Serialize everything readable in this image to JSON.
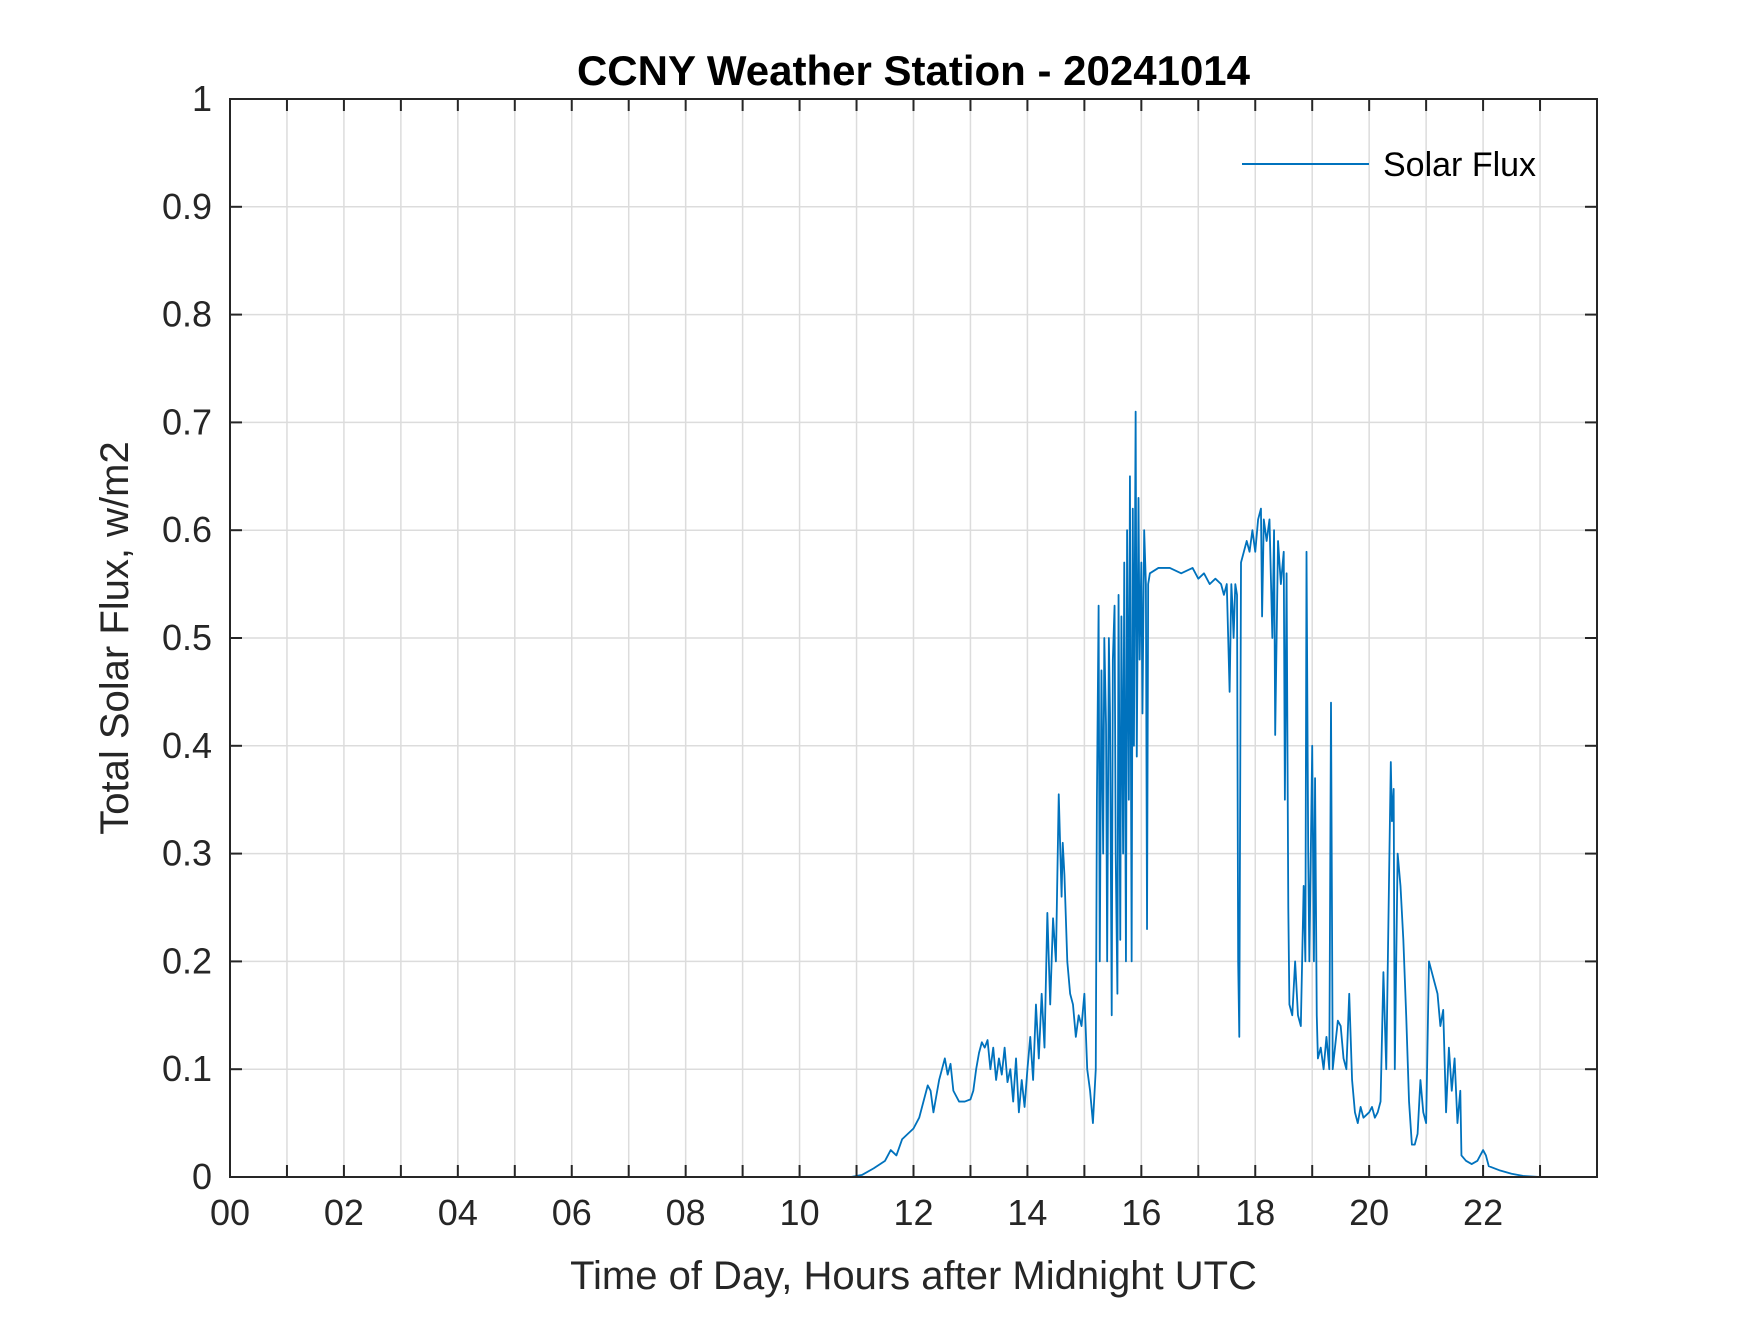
{
  "chart_data": {
    "type": "line",
    "title": "CCNY Weather Station - 20241014",
    "xlabel": "Time of Day, Hours after Midnight UTC",
    "ylabel": "Total Solar Flux, w/m2",
    "xlim": [
      0,
      24
    ],
    "ylim": [
      0,
      1
    ],
    "grid": true,
    "legend": {
      "position": "top-right",
      "entries": [
        "Solar Flux"
      ]
    },
    "x_tick_values": [
      0,
      1,
      2,
      3,
      4,
      5,
      6,
      7,
      8,
      9,
      10,
      11,
      12,
      13,
      14,
      15,
      16,
      17,
      18,
      19,
      20,
      21,
      22,
      23,
      24
    ],
    "x_tick_labels": [
      {
        "value": 0,
        "label": "00"
      },
      {
        "value": 2,
        "label": "02"
      },
      {
        "value": 4,
        "label": "04"
      },
      {
        "value": 6,
        "label": "06"
      },
      {
        "value": 8,
        "label": "08"
      },
      {
        "value": 10,
        "label": "10"
      },
      {
        "value": 12,
        "label": "12"
      },
      {
        "value": 14,
        "label": "14"
      },
      {
        "value": 16,
        "label": "16"
      },
      {
        "value": 18,
        "label": "18"
      },
      {
        "value": 20,
        "label": "20"
      },
      {
        "value": 22,
        "label": "22"
      }
    ],
    "y_ticks": [
      {
        "value": 0,
        "label": "0"
      },
      {
        "value": 0.1,
        "label": "0.1"
      },
      {
        "value": 0.2,
        "label": "0.2"
      },
      {
        "value": 0.3,
        "label": "0.3"
      },
      {
        "value": 0.4,
        "label": "0.4"
      },
      {
        "value": 0.5,
        "label": "0.5"
      },
      {
        "value": 0.6,
        "label": "0.6"
      },
      {
        "value": 0.7,
        "label": "0.7"
      },
      {
        "value": 0.8,
        "label": "0.8"
      },
      {
        "value": 0.9,
        "label": "0.9"
      },
      {
        "value": 1,
        "label": "1"
      }
    ],
    "series": [
      {
        "name": "Solar Flux",
        "color": "#0072BD",
        "points": [
          [
            0,
            0
          ],
          [
            10.9,
            0
          ],
          [
            11.1,
            0.002
          ],
          [
            11.3,
            0.008
          ],
          [
            11.5,
            0.015
          ],
          [
            11.6,
            0.025
          ],
          [
            11.7,
            0.02
          ],
          [
            11.8,
            0.035
          ],
          [
            11.9,
            0.04
          ],
          [
            12.0,
            0.045
          ],
          [
            12.1,
            0.055
          ],
          [
            12.2,
            0.075
          ],
          [
            12.25,
            0.085
          ],
          [
            12.3,
            0.08
          ],
          [
            12.35,
            0.06
          ],
          [
            12.4,
            0.075
          ],
          [
            12.45,
            0.09
          ],
          [
            12.5,
            0.1
          ],
          [
            12.55,
            0.11
          ],
          [
            12.6,
            0.095
          ],
          [
            12.65,
            0.105
          ],
          [
            12.7,
            0.08
          ],
          [
            12.8,
            0.07
          ],
          [
            12.9,
            0.07
          ],
          [
            13.0,
            0.072
          ],
          [
            13.05,
            0.08
          ],
          [
            13.1,
            0.1
          ],
          [
            13.15,
            0.115
          ],
          [
            13.2,
            0.125
          ],
          [
            13.25,
            0.12
          ],
          [
            13.3,
            0.127
          ],
          [
            13.35,
            0.1
          ],
          [
            13.4,
            0.12
          ],
          [
            13.45,
            0.09
          ],
          [
            13.5,
            0.11
          ],
          [
            13.55,
            0.095
          ],
          [
            13.6,
            0.12
          ],
          [
            13.65,
            0.088
          ],
          [
            13.7,
            0.1
          ],
          [
            13.75,
            0.07
          ],
          [
            13.8,
            0.11
          ],
          [
            13.85,
            0.06
          ],
          [
            13.9,
            0.09
          ],
          [
            13.95,
            0.065
          ],
          [
            14.0,
            0.1
          ],
          [
            14.05,
            0.13
          ],
          [
            14.1,
            0.09
          ],
          [
            14.15,
            0.16
          ],
          [
            14.2,
            0.11
          ],
          [
            14.25,
            0.17
          ],
          [
            14.3,
            0.12
          ],
          [
            14.35,
            0.245
          ],
          [
            14.4,
            0.16
          ],
          [
            14.45,
            0.24
          ],
          [
            14.5,
            0.2
          ],
          [
            14.55,
            0.355
          ],
          [
            14.6,
            0.26
          ],
          [
            14.62,
            0.31
          ],
          [
            14.65,
            0.28
          ],
          [
            14.7,
            0.2
          ],
          [
            14.75,
            0.17
          ],
          [
            14.8,
            0.16
          ],
          [
            14.85,
            0.13
          ],
          [
            14.9,
            0.15
          ],
          [
            14.95,
            0.14
          ],
          [
            15.0,
            0.17
          ],
          [
            15.05,
            0.1
          ],
          [
            15.1,
            0.08
          ],
          [
            15.15,
            0.05
          ],
          [
            15.2,
            0.1
          ],
          [
            15.22,
            0.35
          ],
          [
            15.25,
            0.53
          ],
          [
            15.27,
            0.2
          ],
          [
            15.3,
            0.47
          ],
          [
            15.33,
            0.3
          ],
          [
            15.35,
            0.5
          ],
          [
            15.38,
            0.42
          ],
          [
            15.4,
            0.2
          ],
          [
            15.43,
            0.5
          ],
          [
            15.45,
            0.43
          ],
          [
            15.48,
            0.15
          ],
          [
            15.5,
            0.48
          ],
          [
            15.53,
            0.53
          ],
          [
            15.55,
            0.3
          ],
          [
            15.58,
            0.17
          ],
          [
            15.6,
            0.54
          ],
          [
            15.63,
            0.22
          ],
          [
            15.65,
            0.52
          ],
          [
            15.68,
            0.3
          ],
          [
            15.7,
            0.57
          ],
          [
            15.73,
            0.2
          ],
          [
            15.75,
            0.6
          ],
          [
            15.78,
            0.35
          ],
          [
            15.8,
            0.65
          ],
          [
            15.83,
            0.2
          ],
          [
            15.85,
            0.62
          ],
          [
            15.87,
            0.4
          ],
          [
            15.9,
            0.71
          ],
          [
            15.92,
            0.39
          ],
          [
            15.95,
            0.63
          ],
          [
            15.97,
            0.48
          ],
          [
            16.0,
            0.57
          ],
          [
            16.02,
            0.43
          ],
          [
            16.05,
            0.6
          ],
          [
            16.08,
            0.55
          ],
          [
            16.1,
            0.23
          ],
          [
            16.12,
            0.55
          ],
          [
            16.15,
            0.56
          ],
          [
            16.3,
            0.565
          ],
          [
            16.5,
            0.565
          ],
          [
            16.7,
            0.56
          ],
          [
            16.9,
            0.565
          ],
          [
            17.0,
            0.555
          ],
          [
            17.1,
            0.56
          ],
          [
            17.2,
            0.55
          ],
          [
            17.3,
            0.555
          ],
          [
            17.4,
            0.55
          ],
          [
            17.45,
            0.54
          ],
          [
            17.5,
            0.55
          ],
          [
            17.55,
            0.45
          ],
          [
            17.58,
            0.55
          ],
          [
            17.6,
            0.53
          ],
          [
            17.62,
            0.5
          ],
          [
            17.65,
            0.55
          ],
          [
            17.68,
            0.54
          ],
          [
            17.7,
            0.2
          ],
          [
            17.72,
            0.13
          ],
          [
            17.75,
            0.57
          ],
          [
            17.8,
            0.58
          ],
          [
            17.85,
            0.59
          ],
          [
            17.9,
            0.58
          ],
          [
            17.95,
            0.6
          ],
          [
            18.0,
            0.58
          ],
          [
            18.05,
            0.61
          ],
          [
            18.1,
            0.62
          ],
          [
            18.12,
            0.52
          ],
          [
            18.15,
            0.61
          ],
          [
            18.2,
            0.59
          ],
          [
            18.25,
            0.61
          ],
          [
            18.3,
            0.5
          ],
          [
            18.33,
            0.6
          ],
          [
            18.35,
            0.41
          ],
          [
            18.4,
            0.59
          ],
          [
            18.45,
            0.55
          ],
          [
            18.5,
            0.58
          ],
          [
            18.52,
            0.35
          ],
          [
            18.55,
            0.56
          ],
          [
            18.58,
            0.25
          ],
          [
            18.6,
            0.16
          ],
          [
            18.65,
            0.15
          ],
          [
            18.7,
            0.2
          ],
          [
            18.75,
            0.15
          ],
          [
            18.8,
            0.14
          ],
          [
            18.85,
            0.27
          ],
          [
            18.88,
            0.2
          ],
          [
            18.9,
            0.58
          ],
          [
            18.93,
            0.3
          ],
          [
            18.95,
            0.2
          ],
          [
            19.0,
            0.4
          ],
          [
            19.03,
            0.2
          ],
          [
            19.05,
            0.37
          ],
          [
            19.08,
            0.15
          ],
          [
            19.1,
            0.11
          ],
          [
            19.15,
            0.12
          ],
          [
            19.2,
            0.1
          ],
          [
            19.25,
            0.13
          ],
          [
            19.3,
            0.1
          ],
          [
            19.33,
            0.44
          ],
          [
            19.36,
            0.1
          ],
          [
            19.4,
            0.12
          ],
          [
            19.45,
            0.145
          ],
          [
            19.5,
            0.14
          ],
          [
            19.55,
            0.11
          ],
          [
            19.6,
            0.1
          ],
          [
            19.65,
            0.17
          ],
          [
            19.7,
            0.09
          ],
          [
            19.75,
            0.06
          ],
          [
            19.8,
            0.05
          ],
          [
            19.85,
            0.065
          ],
          [
            19.9,
            0.055
          ],
          [
            20.0,
            0.06
          ],
          [
            20.05,
            0.065
          ],
          [
            20.1,
            0.055
          ],
          [
            20.15,
            0.06
          ],
          [
            20.2,
            0.07
          ],
          [
            20.25,
            0.19
          ],
          [
            20.3,
            0.1
          ],
          [
            20.35,
            0.28
          ],
          [
            20.38,
            0.385
          ],
          [
            20.4,
            0.33
          ],
          [
            20.43,
            0.36
          ],
          [
            20.45,
            0.1
          ],
          [
            20.5,
            0.3
          ],
          [
            20.55,
            0.27
          ],
          [
            20.6,
            0.22
          ],
          [
            20.65,
            0.15
          ],
          [
            20.7,
            0.07
          ],
          [
            20.75,
            0.03
          ],
          [
            20.8,
            0.03
          ],
          [
            20.85,
            0.04
          ],
          [
            20.9,
            0.09
          ],
          [
            20.95,
            0.06
          ],
          [
            21.0,
            0.05
          ],
          [
            21.05,
            0.2
          ],
          [
            21.1,
            0.19
          ],
          [
            21.15,
            0.18
          ],
          [
            21.2,
            0.17
          ],
          [
            21.25,
            0.14
          ],
          [
            21.3,
            0.155
          ],
          [
            21.35,
            0.06
          ],
          [
            21.4,
            0.12
          ],
          [
            21.45,
            0.08
          ],
          [
            21.5,
            0.11
          ],
          [
            21.55,
            0.05
          ],
          [
            21.6,
            0.08
          ],
          [
            21.62,
            0.02
          ],
          [
            21.7,
            0.015
          ],
          [
            21.8,
            0.012
          ],
          [
            21.9,
            0.015
          ],
          [
            22.0,
            0.025
          ],
          [
            22.05,
            0.02
          ],
          [
            22.1,
            0.01
          ],
          [
            22.3,
            0.006
          ],
          [
            22.5,
            0.003
          ],
          [
            22.7,
            0.001
          ],
          [
            23.0,
            0
          ],
          [
            24.0,
            0
          ]
        ]
      }
    ]
  }
}
